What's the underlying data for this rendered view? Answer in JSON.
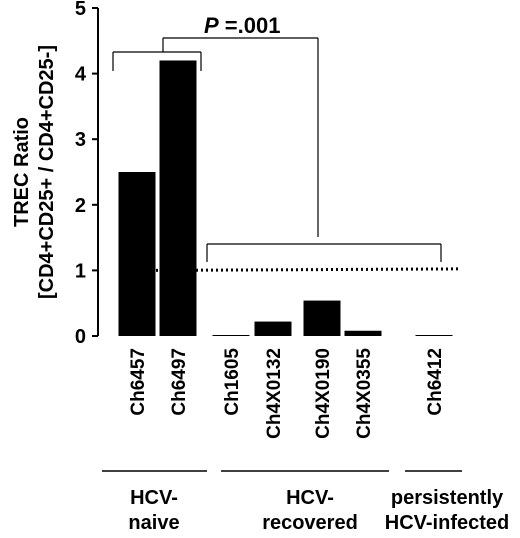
{
  "chart_data": {
    "type": "bar",
    "ylabel_lines": [
      "TREC Ratio",
      "[CD4+CD25+ / CD4+CD25-]"
    ],
    "ylim": [
      0,
      5
    ],
    "yticks": [
      "0",
      "1",
      "2",
      "3",
      "4",
      "5"
    ],
    "grid": false,
    "categories": [
      "Ch6457",
      "Ch6497",
      "Ch1605",
      "Ch4X0132",
      "Ch4X0190",
      "Ch4X0355",
      "Ch6412"
    ],
    "values": [
      2.5,
      4.2,
      0.01,
      0.22,
      0.54,
      0.08,
      0.005
    ],
    "reference_line": {
      "value": 1,
      "style": "dotted"
    },
    "annotation": {
      "p_prefix": "P",
      "p_value": " =.001"
    },
    "groups": [
      {
        "lines": [
          "HCV-",
          "naive"
        ],
        "members": [
          "Ch6457",
          "Ch6497"
        ]
      },
      {
        "lines": [
          "HCV-",
          "recovered"
        ],
        "members": [
          "Ch1605",
          "Ch4X0132",
          "Ch4X0190",
          "Ch4X0355"
        ]
      },
      {
        "lines": [
          "persistently",
          "HCV-infected"
        ],
        "members": [
          "Ch6412"
        ]
      }
    ],
    "colors": {
      "bar": "#000000",
      "axis": "#000000"
    }
  }
}
